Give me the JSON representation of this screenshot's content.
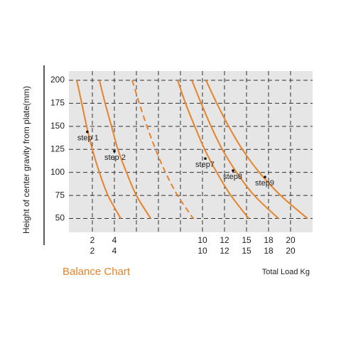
{
  "chart_data": {
    "type": "line",
    "title": "Balance Chart",
    "xlabel": "Total Load Kg",
    "ylabel": "Height of center gravity from plate(mm)",
    "xlim": [
      0,
      11
    ],
    "ylim": [
      35,
      210
    ],
    "yticks": [
      200,
      175,
      150,
      125,
      100,
      75,
      50
    ],
    "xticks": [
      {
        "value": 1,
        "label": "2"
      },
      {
        "value": 2,
        "label": "4"
      },
      {
        "value": 6,
        "label": "10"
      },
      {
        "value": 7,
        "label": "12"
      },
      {
        "value": 8,
        "label": "15"
      },
      {
        "value": 9,
        "label": "18"
      },
      {
        "value": 10,
        "label": "20"
      }
    ],
    "xticks_row2": [
      {
        "value": 1,
        "label": "2"
      },
      {
        "value": 2,
        "label": "4"
      },
      {
        "value": 6,
        "label": "10"
      },
      {
        "value": 7,
        "label": "12"
      },
      {
        "value": 8,
        "label": "15"
      },
      {
        "value": 9,
        "label": "18"
      },
      {
        "value": 10,
        "label": "20"
      }
    ],
    "xgrid": [
      1,
      2,
      3,
      4,
      5,
      6,
      7,
      8,
      9,
      10
    ],
    "grid": true,
    "series": [
      {
        "color": "#e8832a",
        "dashed": false,
        "x": [
          0.29,
          0.52,
          0.74,
          1.0,
          1.32,
          1.71,
          2.29
        ],
        "values": [
          200,
          175,
          150,
          125,
          100,
          75,
          50
        ]
      },
      {
        "color": "#e8832a",
        "dashed": false,
        "x": [
          1.32,
          1.58,
          1.87,
          2.16,
          2.55,
          3.0,
          3.65
        ],
        "values": [
          200,
          175,
          150,
          125,
          100,
          75,
          50
        ]
      },
      {
        "color": "#e8832a",
        "dashed": true,
        "x": [
          2.81,
          3.13,
          3.48,
          3.87,
          4.32,
          4.87,
          5.58
        ],
        "values": [
          200,
          175,
          150,
          125,
          100,
          75,
          50
        ]
      },
      {
        "color": "#e8832a",
        "dashed": false,
        "x": [
          4.87,
          5.23,
          5.65,
          6.1,
          6.65,
          7.29,
          8.1
        ],
        "values": [
          200,
          175,
          150,
          125,
          100,
          75,
          50
        ]
      },
      {
        "color": "#e8832a",
        "dashed": false,
        "x": [
          5.52,
          5.94,
          6.39,
          6.9,
          7.55,
          8.35,
          9.45
        ],
        "values": [
          200,
          175,
          150,
          125,
          100,
          75,
          50
        ]
      },
      {
        "color": "#e8832a",
        "dashed": false,
        "x": [
          6.16,
          6.65,
          7.19,
          7.81,
          8.58,
          9.55,
          10.77
        ],
        "values": [
          200,
          175,
          150,
          125,
          100,
          75,
          50
        ]
      }
    ],
    "annotations": [
      {
        "text": "step 1",
        "x": 0.77,
        "y": 144
      },
      {
        "text": "step 2",
        "x": 2.0,
        "y": 123
      },
      {
        "text": "step7",
        "x": 6.13,
        "y": 115
      },
      {
        "text": "step8",
        "x": 7.39,
        "y": 102
      },
      {
        "text": "step9",
        "x": 8.84,
        "y": 95
      }
    ]
  }
}
